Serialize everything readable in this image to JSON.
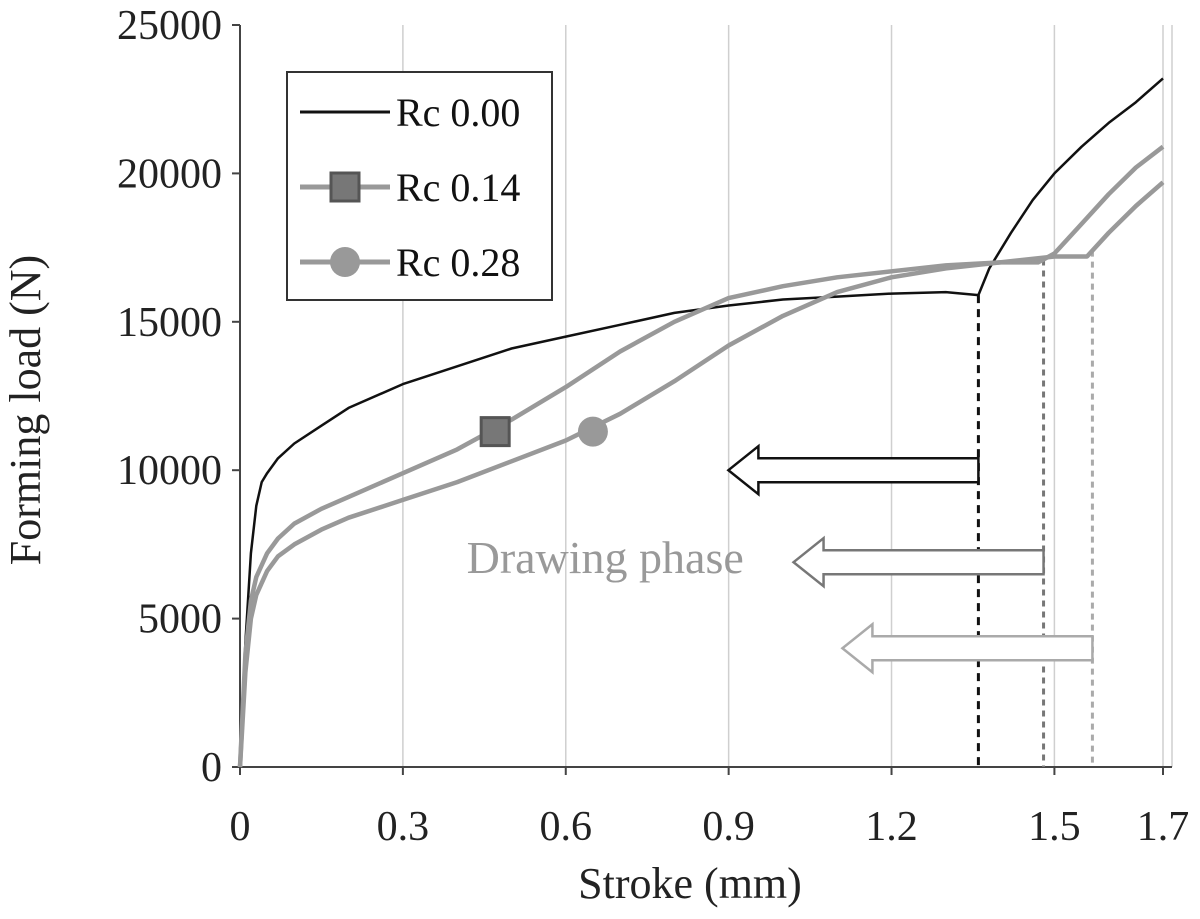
{
  "chart_data": {
    "type": "line",
    "xlabel": "Stroke (mm)",
    "ylabel": "Forming load (N)",
    "xlim": [
      0,
      1.7
    ],
    "ylim": [
      0,
      25000
    ],
    "xticks": [
      0,
      0.3,
      0.6,
      0.9,
      1.2,
      1.5,
      1.7
    ],
    "xtick_labels": [
      "0",
      "0.3",
      "0.6",
      "0.9",
      "1.2",
      "1.5",
      "1.7"
    ],
    "yticks": [
      0,
      5000,
      10000,
      15000,
      20000,
      25000
    ],
    "ytick_labels": [
      "0",
      "5000",
      "10000",
      "15000",
      "20000",
      "25000"
    ],
    "grid": "vertical",
    "legend_position": "top-left",
    "series": [
      {
        "name": "Rc 0.00",
        "color": "#111111",
        "marker": "none",
        "x": [
          0,
          0.01,
          0.02,
          0.03,
          0.04,
          0.05,
          0.07,
          0.1,
          0.15,
          0.2,
          0.3,
          0.4,
          0.5,
          0.6,
          0.7,
          0.8,
          0.9,
          1.0,
          1.1,
          1.2,
          1.3,
          1.36,
          1.38,
          1.42,
          1.46,
          1.5,
          1.55,
          1.6,
          1.65,
          1.7
        ],
        "y": [
          0,
          4200,
          7200,
          8800,
          9600,
          9900,
          10400,
          10900,
          11500,
          12100,
          12900,
          13500,
          14100,
          14500,
          14900,
          15300,
          15550,
          15750,
          15850,
          15950,
          16000,
          15900,
          16800,
          18000,
          19100,
          20000,
          20900,
          21700,
          22400,
          23200
        ]
      },
      {
        "name": "Rc 0.14",
        "color": "#999999",
        "marker": "square",
        "marker_x": 0.47,
        "marker_y": 11300,
        "x": [
          0,
          0.01,
          0.02,
          0.03,
          0.05,
          0.07,
          0.1,
          0.15,
          0.2,
          0.3,
          0.4,
          0.5,
          0.6,
          0.7,
          0.8,
          0.9,
          1.0,
          1.1,
          1.2,
          1.3,
          1.4,
          1.47,
          1.5,
          1.55,
          1.6,
          1.65,
          1.7
        ],
        "y": [
          0,
          3800,
          5600,
          6400,
          7200,
          7700,
          8200,
          8700,
          9100,
          9900,
          10700,
          11700,
          12800,
          14000,
          15000,
          15800,
          16200,
          16500,
          16700,
          16900,
          17000,
          17000,
          17300,
          18300,
          19300,
          20200,
          20900
        ]
      },
      {
        "name": "Rc 0.28",
        "color": "#999999",
        "marker": "circle",
        "marker_x": 0.65,
        "marker_y": 11300,
        "x": [
          0,
          0.01,
          0.02,
          0.03,
          0.05,
          0.07,
          0.1,
          0.15,
          0.2,
          0.3,
          0.4,
          0.5,
          0.6,
          0.7,
          0.8,
          0.9,
          1.0,
          1.1,
          1.2,
          1.3,
          1.4,
          1.5,
          1.56,
          1.6,
          1.65,
          1.7
        ],
        "y": [
          0,
          3200,
          5000,
          5800,
          6600,
          7100,
          7500,
          8000,
          8400,
          9000,
          9600,
          10300,
          11000,
          11900,
          13000,
          14200,
          15200,
          16000,
          16500,
          16800,
          17000,
          17200,
          17200,
          18000,
          18900,
          19700
        ]
      }
    ],
    "transitions": [
      {
        "x": 1.36,
        "color": "#111111",
        "dash": "8,6",
        "arrow_y": 10000
      },
      {
        "x": 1.48,
        "color": "#777777",
        "dash": "6,5",
        "arrow_y": 6900
      },
      {
        "x": 1.57,
        "color": "#aaaaaa",
        "dash": "6,5",
        "arrow_y": 4000
      }
    ],
    "annotation": {
      "text": "Drawing phase",
      "color": "#999999",
      "x": 0.27,
      "y": 7000
    }
  }
}
